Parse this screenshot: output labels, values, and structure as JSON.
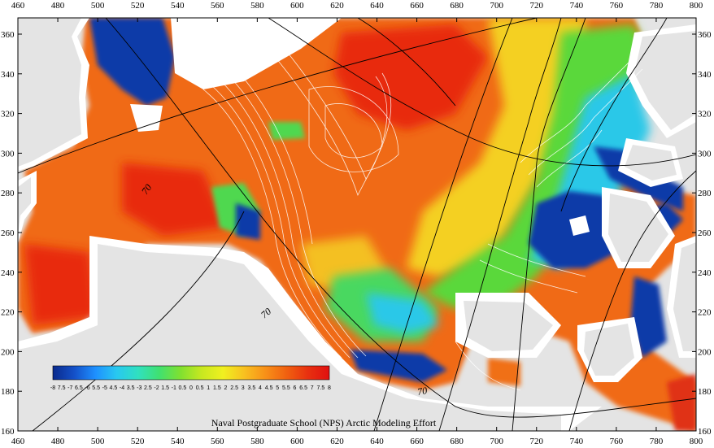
{
  "map": {
    "credit": "Naval Postgraduate School (NPS) Arctic Modeling Effort",
    "x_ticks": [
      "460",
      "480",
      "500",
      "520",
      "540",
      "560",
      "580",
      "600",
      "620",
      "640",
      "660",
      "680",
      "700",
      "720",
      "740",
      "760",
      "780",
      "800"
    ],
    "y_ticks": [
      "360",
      "340",
      "320",
      "300",
      "280",
      "260",
      "240",
      "220",
      "200",
      "180",
      "160"
    ],
    "latitude_labels": [
      "70",
      "70",
      "70"
    ],
    "colorbar": {
      "labels": [
        "-8",
        "7.5",
        "-7",
        "6.5",
        "-6",
        "5.5",
        "-5",
        "4.5",
        "-4",
        "3.5",
        "-3",
        "2.5",
        "-2",
        "1.5",
        "-1",
        "0.5",
        "0",
        "0.5",
        "1",
        "1.5",
        "2",
        "2.5",
        "3",
        "3.5",
        "4",
        "4.5",
        "5",
        "5.5",
        "6",
        "6.5",
        "7",
        "7.5",
        "8"
      ],
      "colors": [
        "#0a2a8c",
        "#1450c8",
        "#1e90ff",
        "#28c8f0",
        "#30e0c0",
        "#40e070",
        "#80e030",
        "#c8e820",
        "#f0f020",
        "#f8c020",
        "#f89018",
        "#f06010",
        "#e83010",
        "#e01010"
      ]
    },
    "colors": {
      "land": "#e4e4e4",
      "ice_edge": "#ffffff",
      "grid": "#000000",
      "contour": "#ffffff"
    }
  }
}
